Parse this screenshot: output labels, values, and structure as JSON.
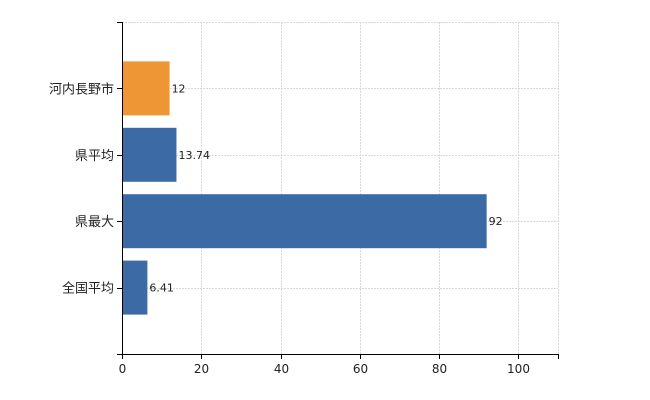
{
  "chart_data": {
    "type": "bar",
    "orientation": "horizontal",
    "categories": [
      "河内長野市",
      "県平均",
      "県最大",
      "全国平均"
    ],
    "values": [
      12,
      13.74,
      92,
      6.41
    ],
    "data_labels": [
      "12",
      "13.74",
      "92",
      "6.41"
    ],
    "bar_colors": [
      "#ee9535",
      "#3c6aa5",
      "#3c6aa5",
      "#3c6aa5"
    ],
    "xlim": [
      0,
      110
    ],
    "x_ticks": [
      0,
      20,
      40,
      60,
      80,
      100
    ],
    "x_tick_labels": [
      "0",
      "20",
      "40",
      "60",
      "80",
      "100"
    ],
    "grid": true,
    "title": "",
    "xlabel": "",
    "ylabel": ""
  }
}
